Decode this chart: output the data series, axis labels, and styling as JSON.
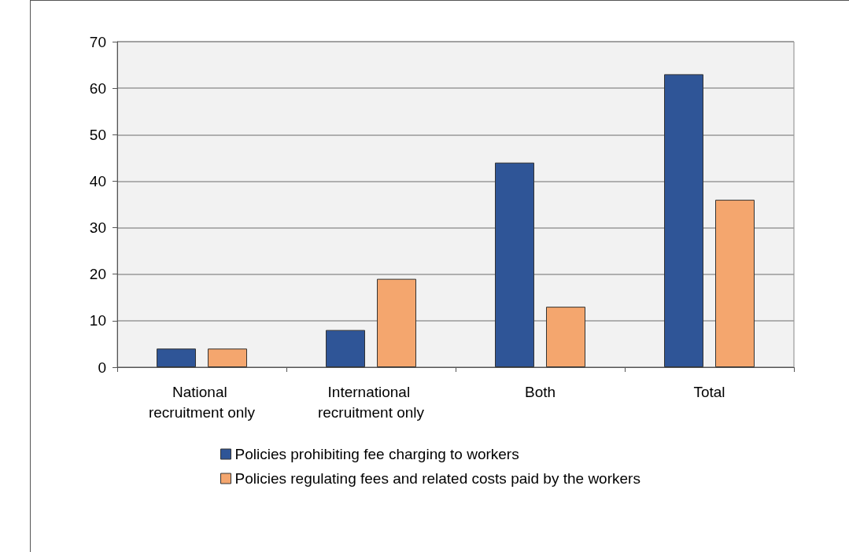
{
  "chart_data": {
    "type": "bar",
    "categories": [
      "National recruitment only",
      "International recruitment only",
      "Both",
      "Total"
    ],
    "series": [
      {
        "name": "Policies prohibiting fee charging to workers",
        "color": "#2f5597",
        "values": [
          4,
          8,
          44,
          63
        ]
      },
      {
        "name": "Policies regulating fees and related costs paid by the workers",
        "color": "#f4a66e",
        "values": [
          4,
          19,
          13,
          36
        ]
      }
    ],
    "ylim": [
      0,
      70
    ],
    "yticks": [
      0,
      10,
      20,
      30,
      40,
      50,
      60,
      70
    ],
    "grid": "y",
    "legend": "bottom"
  }
}
